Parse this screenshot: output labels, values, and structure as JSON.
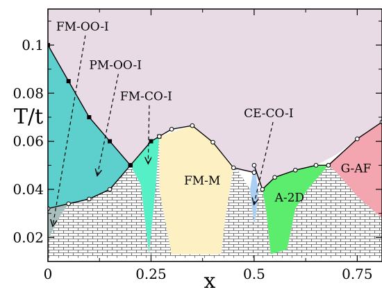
{
  "chart_data": {
    "type": "area",
    "title": "",
    "xlabel": "x",
    "ylabel": "T/t",
    "xlim": [
      0,
      0.81
    ],
    "ylim": [
      0.01,
      0.115
    ],
    "x_ticks": [
      0,
      0.25,
      0.5,
      0.75
    ],
    "x_tick_labels": [
      "0",
      "0.25",
      "0.5",
      "0.75"
    ],
    "y_ticks": [
      0.02,
      0.04,
      0.06,
      0.08,
      0.1
    ],
    "y_tick_labels": [
      "0.02",
      "0.04",
      "0.06",
      "0.08",
      "0.1"
    ],
    "regions": [
      {
        "id": "pm-oo-i",
        "color": "#e8dbe6",
        "polygon": [
          [
            0,
            0.1
          ],
          [
            0.1,
            0.07
          ],
          [
            0.2,
            0.05
          ],
          [
            0.2583,
            0.0615
          ],
          [
            0.3,
            0.065
          ],
          [
            0.35,
            0.0665
          ],
          [
            0.4,
            0.0596
          ],
          [
            0.46,
            0.048
          ],
          [
            0.5,
            0.047
          ],
          [
            0.52,
            0.04
          ],
          [
            0.55,
            0.045
          ],
          [
            0.6,
            0.048
          ],
          [
            0.65,
            0.05
          ],
          [
            0.7,
            0.0545
          ],
          [
            0.75,
            0.061
          ],
          [
            0.81,
            0.068
          ],
          [
            0.81,
            0.115
          ],
          [
            0,
            0.115
          ]
        ]
      },
      {
        "id": "fm-oo-i",
        "color": "#5dcfcd",
        "polygon": [
          [
            0,
            0.1
          ],
          [
            0.05,
            0.085
          ],
          [
            0.1,
            0.07
          ],
          [
            0.15,
            0.06
          ],
          [
            0.2,
            0.05
          ],
          [
            0.15,
            0.04
          ],
          [
            0.1,
            0.036
          ],
          [
            0.05,
            0.034
          ],
          [
            0,
            0.032
          ]
        ]
      },
      {
        "id": "fm-oo-i-lower",
        "color": "#a7bebd",
        "polygon": [
          [
            0,
            0.032
          ],
          [
            0.05,
            0.034
          ],
          [
            0.03,
            0.029
          ],
          [
            0,
            0.019
          ]
        ]
      },
      {
        "id": "fm-co-i",
        "color": "#56f0c6",
        "polygon": [
          [
            0.2,
            0.05
          ],
          [
            0.25,
            0.06
          ],
          [
            0.27,
            0.062
          ],
          [
            0.262,
            0.042
          ],
          [
            0.245,
            0.013
          ],
          [
            0.225,
            0.042
          ]
        ]
      },
      {
        "id": "fm-m",
        "color": "#fdf1c4",
        "polygon": [
          [
            0.27,
            0.062
          ],
          [
            0.35,
            0.0665
          ],
          [
            0.4,
            0.06
          ],
          [
            0.45,
            0.049
          ],
          [
            0.43,
            0.028
          ],
          [
            0.42,
            0.013
          ],
          [
            0.3,
            0.013
          ],
          [
            0.27,
            0.04
          ]
        ]
      },
      {
        "id": "ce-co-i",
        "color": "#a9cff5",
        "polygon": [
          [
            0.5,
            0.05
          ],
          [
            0.51,
            0.04
          ],
          [
            0.505,
            0.03
          ],
          [
            0.5,
            0.025
          ],
          [
            0.49,
            0.04
          ]
        ]
      },
      {
        "id": "a-2d",
        "color": "#5ded6e",
        "polygon": [
          [
            0.52,
            0.04
          ],
          [
            0.55,
            0.045
          ],
          [
            0.6,
            0.048
          ],
          [
            0.65,
            0.05
          ],
          [
            0.68,
            0.05
          ],
          [
            0.63,
            0.04
          ],
          [
            0.6,
            0.032
          ],
          [
            0.58,
            0.015
          ],
          [
            0.54,
            0.013
          ],
          [
            0.53,
            0.03
          ]
        ]
      },
      {
        "id": "g-af",
        "color": "#f4a6b0",
        "polygon": [
          [
            0.68,
            0.05
          ],
          [
            0.75,
            0.061
          ],
          [
            0.81,
            0.068
          ],
          [
            0.81,
            0.028
          ],
          [
            0.75,
            0.037
          ],
          [
            0.7,
            0.047
          ]
        ]
      }
    ],
    "hatched_region": {
      "id": "brick-hatched",
      "polygon": [
        [
          0.05,
          0.034
        ],
        [
          0.1,
          0.036
        ],
        [
          0.15,
          0.04
        ],
        [
          0.2,
          0.05
        ],
        [
          0.225,
          0.042
        ],
        [
          0.245,
          0.013
        ],
        [
          0.262,
          0.042
        ],
        [
          0.27,
          0.062
        ],
        [
          0.27,
          0.04
        ],
        [
          0.3,
          0.013
        ],
        [
          0.42,
          0.013
        ],
        [
          0.43,
          0.028
        ],
        [
          0.45,
          0.049
        ],
        [
          0.46,
          0.048
        ],
        [
          0.49,
          0.04
        ],
        [
          0.5,
          0.025
        ],
        [
          0.505,
          0.03
        ],
        [
          0.51,
          0.04
        ],
        [
          0.52,
          0.04
        ],
        [
          0.53,
          0.03
        ],
        [
          0.54,
          0.013
        ],
        [
          0.58,
          0.015
        ],
        [
          0.6,
          0.032
        ],
        [
          0.63,
          0.04
        ],
        [
          0.68,
          0.05
        ],
        [
          0.7,
          0.047
        ],
        [
          0.75,
          0.037
        ],
        [
          0.81,
          0.028
        ],
        [
          0.81,
          0.0115
        ],
        [
          0,
          0.0115
        ],
        [
          0,
          0.019
        ],
        [
          0.03,
          0.029
        ]
      ]
    },
    "boundaries": [
      {
        "points": [
          [
            0,
            0.1
          ],
          [
            0.05,
            0.085
          ],
          [
            0.1,
            0.07
          ],
          [
            0.15,
            0.06
          ],
          [
            0.2,
            0.05
          ]
        ],
        "marker": "square"
      },
      {
        "points": [
          [
            0,
            0.032
          ],
          [
            0.05,
            0.034
          ],
          [
            0.1,
            0.036
          ],
          [
            0.15,
            0.04
          ],
          [
            0.2,
            0.05
          ]
        ],
        "marker": "circle"
      },
      {
        "points": [
          [
            0.2,
            0.05
          ],
          [
            0.25,
            0.06
          ],
          [
            0.27,
            0.062
          ]
        ],
        "marker": "square"
      },
      {
        "points": [
          [
            0.27,
            0.062
          ],
          [
            0.3,
            0.065
          ],
          [
            0.35,
            0.0665
          ],
          [
            0.4,
            0.0596
          ],
          [
            0.45,
            0.049
          ],
          [
            0.5,
            0.047
          ]
        ],
        "marker": "circle"
      },
      {
        "points": [
          [
            0.5,
            0.05
          ],
          [
            0.52,
            0.04
          ],
          [
            0.55,
            0.045
          ],
          [
            0.6,
            0.048
          ],
          [
            0.65,
            0.05
          ],
          [
            0.68,
            0.05
          ]
        ],
        "marker": "circle"
      },
      {
        "points": [
          [
            0.68,
            0.05
          ],
          [
            0.75,
            0.061
          ],
          [
            0.81,
            0.068
          ]
        ],
        "marker": "circle"
      }
    ],
    "annotations": [
      {
        "text": "FM-OO-I",
        "x": 0.02,
        "y": 0.106,
        "arrow_to": [
          0.012,
          0.025
        ]
      },
      {
        "text": "PM-OO-I",
        "x": 0.1,
        "y": 0.09,
        "arrow_to": [
          0.12,
          0.046
        ]
      },
      {
        "text": "FM-CO-I",
        "x": 0.175,
        "y": 0.077,
        "arrow_to": [
          0.243,
          0.051
        ]
      },
      {
        "text": "CE-CO-I",
        "x": 0.475,
        "y": 0.07,
        "arrow_to": [
          0.5,
          0.034
        ]
      },
      {
        "text": "FM-M",
        "x": 0.33,
        "y": 0.042
      },
      {
        "text": "A-2D",
        "x": 0.55,
        "y": 0.035
      },
      {
        "text": "G-AF",
        "x": 0.71,
        "y": 0.047
      }
    ]
  }
}
